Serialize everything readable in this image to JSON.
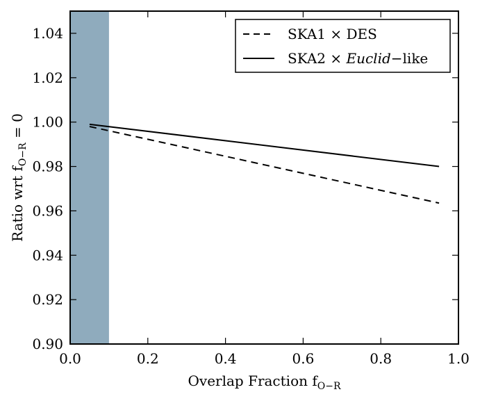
{
  "chart_data": {
    "type": "line",
    "xlabel": "Overlap Fraction f",
    "xlabel_sub": "O−R",
    "ylabel": "Ratio wrt f",
    "ylabel_sub": "O−R",
    "ylabel_suffix": " = 0",
    "xlim": [
      0.0,
      1.0
    ],
    "ylim": [
      0.9,
      1.05
    ],
    "x_ticks": [
      0.0,
      0.2,
      0.4,
      0.6,
      0.8,
      1.0
    ],
    "x_tick_labels": [
      "0.0",
      "0.2",
      "0.4",
      "0.6",
      "0.8",
      "1.0"
    ],
    "y_ticks": [
      0.9,
      0.92,
      0.94,
      0.96,
      0.98,
      1.0,
      1.02,
      1.04
    ],
    "y_tick_labels": [
      "0.90",
      "0.92",
      "0.94",
      "0.96",
      "0.98",
      "1.00",
      "1.02",
      "1.04"
    ],
    "shaded_region": {
      "x_from": 0.0,
      "x_to": 0.1,
      "color": "#8fabbd"
    },
    "legend_position": "top-right",
    "series": [
      {
        "name": "SKA1 × DES",
        "legend_parts": [
          "SKA1 × DES"
        ],
        "style": "dashed",
        "color": "#000000",
        "x": [
          0.05,
          0.95
        ],
        "y": [
          0.998,
          0.9635
        ]
      },
      {
        "name": "SKA2 × Euclid−like",
        "legend_parts": [
          "SKA2 × ",
          "Euclid",
          "−like"
        ],
        "style": "solid",
        "color": "#000000",
        "x": [
          0.05,
          0.95
        ],
        "y": [
          0.999,
          0.98
        ]
      }
    ]
  }
}
